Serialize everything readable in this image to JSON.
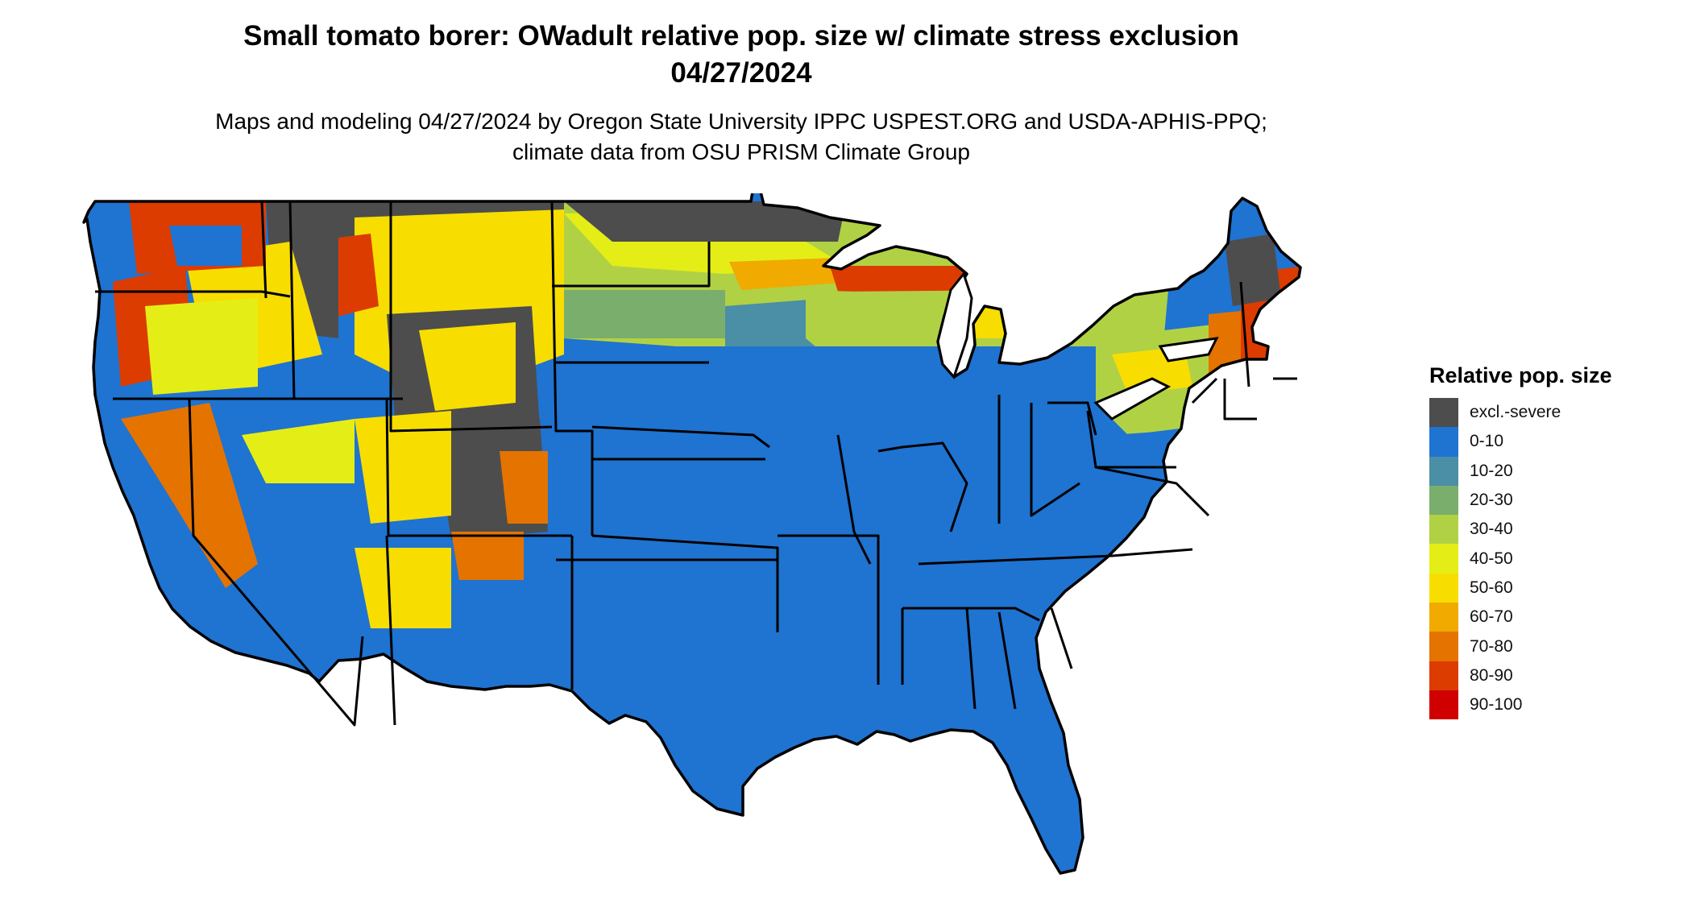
{
  "title": "Small tomato borer: OWadult relative pop. size w/ climate stress exclusion 04/27/2024",
  "subtitle": "Maps and modeling 04/27/2024 by Oregon State University IPPC USPEST.ORG and USDA-APHIS-PPQ; climate data from OSU PRISM Climate Group",
  "legend": {
    "title": "Relative pop. size",
    "items": [
      {
        "label": "excl.-severe",
        "color": "#4d4d4d"
      },
      {
        "label": "0-10",
        "color": "#1f73d1"
      },
      {
        "label": "10-20",
        "color": "#4a8fa6"
      },
      {
        "label": "20-30",
        "color": "#7aae6c"
      },
      {
        "label": "30-40",
        "color": "#b1d145"
      },
      {
        "label": "40-50",
        "color": "#e4ee16"
      },
      {
        "label": "50-60",
        "color": "#f7de00"
      },
      {
        "label": "60-70",
        "color": "#f0aa00"
      },
      {
        "label": "70-80",
        "color": "#e57300"
      },
      {
        "label": "80-90",
        "color": "#dc3c00"
      },
      {
        "label": "90-100",
        "color": "#d00000"
      }
    ]
  },
  "map": {
    "region": "Contiguous United States",
    "base_color": "#1f73d1",
    "border_color": "#000000"
  }
}
